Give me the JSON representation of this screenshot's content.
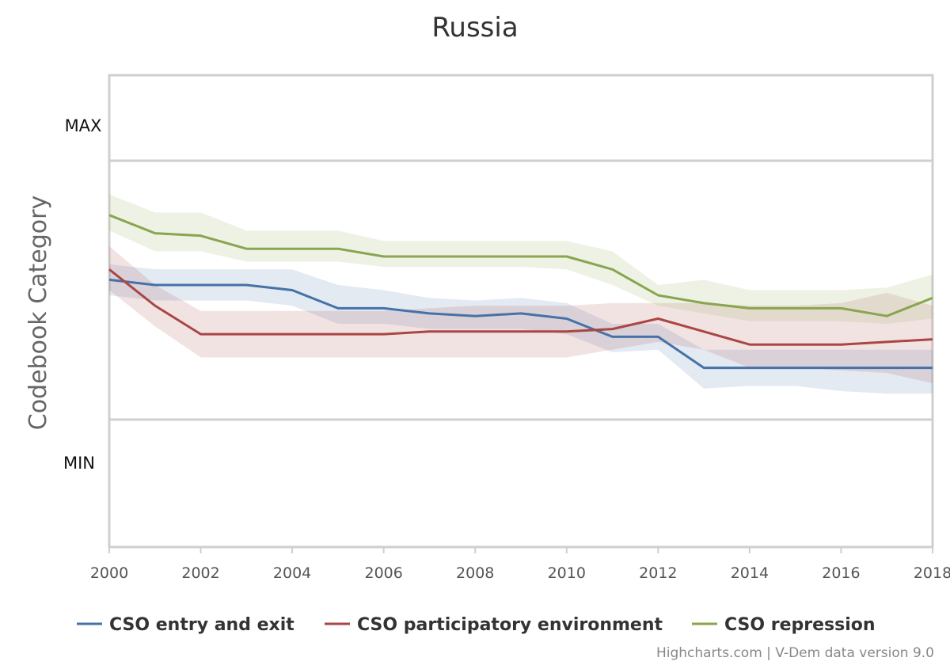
{
  "chart_data": {
    "type": "line",
    "title": "Russia",
    "ylabel": "Codebook Category",
    "category_labels": [
      "MAX",
      "MIN"
    ],
    "ylim": [
      0,
      1
    ],
    "xlim": [
      2000,
      2018
    ],
    "x_ticks": [
      2000,
      2002,
      2004,
      2006,
      2008,
      2010,
      2012,
      2014,
      2016,
      2018
    ],
    "x": [
      2000,
      2001,
      2002,
      2003,
      2004,
      2005,
      2006,
      2007,
      2008,
      2009,
      2010,
      2011,
      2012,
      2013,
      2014,
      2015,
      2016,
      2017,
      2018
    ],
    "series": [
      {
        "name": "CSO entry and exit",
        "color": "#4572a7",
        "values": [
          0.54,
          0.52,
          0.52,
          0.52,
          0.5,
          0.43,
          0.43,
          0.41,
          0.4,
          0.41,
          0.39,
          0.32,
          0.32,
          0.2,
          0.2,
          0.2,
          0.2,
          0.2,
          0.2
        ],
        "lower": [
          0.48,
          0.46,
          0.46,
          0.46,
          0.44,
          0.37,
          0.37,
          0.35,
          0.35,
          0.35,
          0.33,
          0.26,
          0.27,
          0.12,
          0.13,
          0.13,
          0.11,
          0.1,
          0.1
        ],
        "upper": [
          0.6,
          0.58,
          0.58,
          0.58,
          0.58,
          0.52,
          0.5,
          0.47,
          0.46,
          0.47,
          0.45,
          0.37,
          0.37,
          0.27,
          0.27,
          0.27,
          0.27,
          0.27,
          0.27
        ]
      },
      {
        "name": "CSO participatory environment",
        "color": "#aa4643",
        "values": [
          0.58,
          0.44,
          0.33,
          0.33,
          0.33,
          0.33,
          0.33,
          0.34,
          0.34,
          0.34,
          0.34,
          0.35,
          0.39,
          0.34,
          0.29,
          0.29,
          0.29,
          0.3,
          0.31
        ],
        "lower": [
          0.5,
          0.36,
          0.24,
          0.24,
          0.24,
          0.24,
          0.24,
          0.24,
          0.24,
          0.24,
          0.24,
          0.27,
          0.3,
          0.27,
          0.2,
          0.2,
          0.19,
          0.18,
          0.14
        ],
        "upper": [
          0.67,
          0.52,
          0.42,
          0.42,
          0.42,
          0.42,
          0.42,
          0.43,
          0.44,
          0.44,
          0.44,
          0.45,
          0.45,
          0.45,
          0.44,
          0.44,
          0.45,
          0.49,
          0.44
        ]
      },
      {
        "name": "CSO repression",
        "color": "#89a54e",
        "values": [
          0.79,
          0.72,
          0.71,
          0.66,
          0.66,
          0.66,
          0.63,
          0.63,
          0.63,
          0.63,
          0.63,
          0.58,
          0.48,
          0.45,
          0.43,
          0.43,
          0.43,
          0.4,
          0.47
        ],
        "lower": [
          0.73,
          0.65,
          0.65,
          0.61,
          0.61,
          0.61,
          0.59,
          0.59,
          0.59,
          0.59,
          0.58,
          0.52,
          0.44,
          0.41,
          0.38,
          0.38,
          0.38,
          0.37,
          0.39
        ],
        "upper": [
          0.87,
          0.8,
          0.8,
          0.73,
          0.73,
          0.73,
          0.69,
          0.69,
          0.69,
          0.69,
          0.69,
          0.65,
          0.52,
          0.54,
          0.5,
          0.5,
          0.5,
          0.51,
          0.56
        ]
      }
    ],
    "credits": "Highcharts.com | V-Dem data version 9.0",
    "legend_position": "bottom",
    "grid": true
  }
}
